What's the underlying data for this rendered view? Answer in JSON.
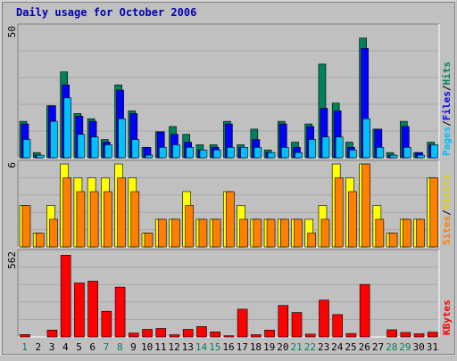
{
  "chart_data": [
    {
      "type": "bar",
      "title": "Daily usage for October 2006",
      "panel": "hits-files-pages",
      "ymax_label": "50",
      "ylim": [
        0,
        50
      ],
      "categories": [
        "1",
        "2",
        "3",
        "4",
        "5",
        "6",
        "7",
        "8",
        "9",
        "10",
        "11",
        "12",
        "13",
        "14",
        "15",
        "16",
        "17",
        "18",
        "19",
        "20",
        "21",
        "22",
        "23",
        "24",
        "25",
        "26",
        "27",
        "28",
        "29",
        "30",
        "31"
      ],
      "weekend_days": [
        "1",
        "7",
        "8",
        "14",
        "15",
        "21",
        "22",
        "28",
        "29"
      ],
      "series": [
        {
          "name": "Hits",
          "color": "#00805c",
          "values": [
            14,
            2,
            20,
            33,
            17,
            15,
            7,
            28,
            18,
            4,
            10,
            12,
            9,
            5,
            5,
            14,
            5,
            11,
            3,
            14,
            6,
            13,
            36,
            21,
            6,
            46,
            11,
            2,
            14,
            2,
            6
          ]
        },
        {
          "name": "Files",
          "color": "#0000ff",
          "values": [
            13,
            1,
            20,
            28,
            16,
            14,
            6,
            26,
            17,
            4,
            10,
            9,
            6,
            3,
            4,
            13,
            4,
            7,
            2,
            13,
            4,
            12,
            19,
            18,
            4,
            42,
            11,
            1,
            12,
            2,
            5
          ]
        },
        {
          "name": "Pages",
          "color": "#00c0ff",
          "values": [
            7,
            1,
            14,
            23,
            9,
            8,
            5,
            15,
            7,
            1,
            4,
            5,
            4,
            3,
            3,
            4,
            4,
            4,
            2,
            4,
            2,
            7,
            8,
            8,
            3,
            15,
            4,
            1,
            4,
            1,
            5
          ]
        }
      ],
      "axis_legend": [
        "Pages",
        "Files",
        "Hits"
      ]
    },
    {
      "type": "bar",
      "panel": "visits-sites",
      "ymax_label": "6",
      "ylim": [
        0,
        6
      ],
      "categories": [
        "1",
        "2",
        "3",
        "4",
        "5",
        "6",
        "7",
        "8",
        "9",
        "10",
        "11",
        "12",
        "13",
        "14",
        "15",
        "16",
        "17",
        "18",
        "19",
        "20",
        "21",
        "22",
        "23",
        "24",
        "25",
        "26",
        "27",
        "28",
        "29",
        "30",
        "31"
      ],
      "series": [
        {
          "name": "Visits",
          "color": "#ffff00",
          "values": [
            3,
            1,
            3,
            6,
            5,
            5,
            5,
            6,
            5,
            1,
            2,
            2,
            4,
            2,
            2,
            4,
            3,
            2,
            2,
            2,
            2,
            2,
            3,
            6,
            5,
            6,
            3,
            1,
            2,
            2,
            5
          ]
        },
        {
          "name": "Sites",
          "color": "#ff8000",
          "values": [
            3,
            1,
            2,
            5,
            4,
            4,
            4,
            5,
            4,
            1,
            2,
            2,
            3,
            2,
            2,
            4,
            2,
            2,
            2,
            2,
            2,
            1,
            2,
            5,
            4,
            6,
            2,
            1,
            2,
            2,
            5
          ]
        }
      ],
      "axis_legend": [
        "Sites",
        "Visits"
      ]
    },
    {
      "type": "bar",
      "panel": "kbytes",
      "ymax_label": "562",
      "ylim": [
        0,
        562
      ],
      "categories": [
        "1",
        "2",
        "3",
        "4",
        "5",
        "6",
        "7",
        "8",
        "9",
        "10",
        "11",
        "12",
        "13",
        "14",
        "15",
        "16",
        "17",
        "18",
        "19",
        "20",
        "21",
        "22",
        "23",
        "24",
        "25",
        "26",
        "27",
        "28",
        "29",
        "30",
        "31"
      ],
      "series": [
        {
          "name": "KBytes",
          "color": "#ff0000",
          "values": [
            16,
            0,
            46,
            548,
            362,
            374,
            172,
            334,
            26,
            51,
            57,
            15,
            51,
            70,
            34,
            8,
            186,
            15,
            46,
            211,
            164,
            19,
            247,
            150,
            23,
            352,
            0,
            48,
            30,
            21,
            32
          ]
        }
      ],
      "axis_legend": [
        "KBytes"
      ]
    }
  ]
}
